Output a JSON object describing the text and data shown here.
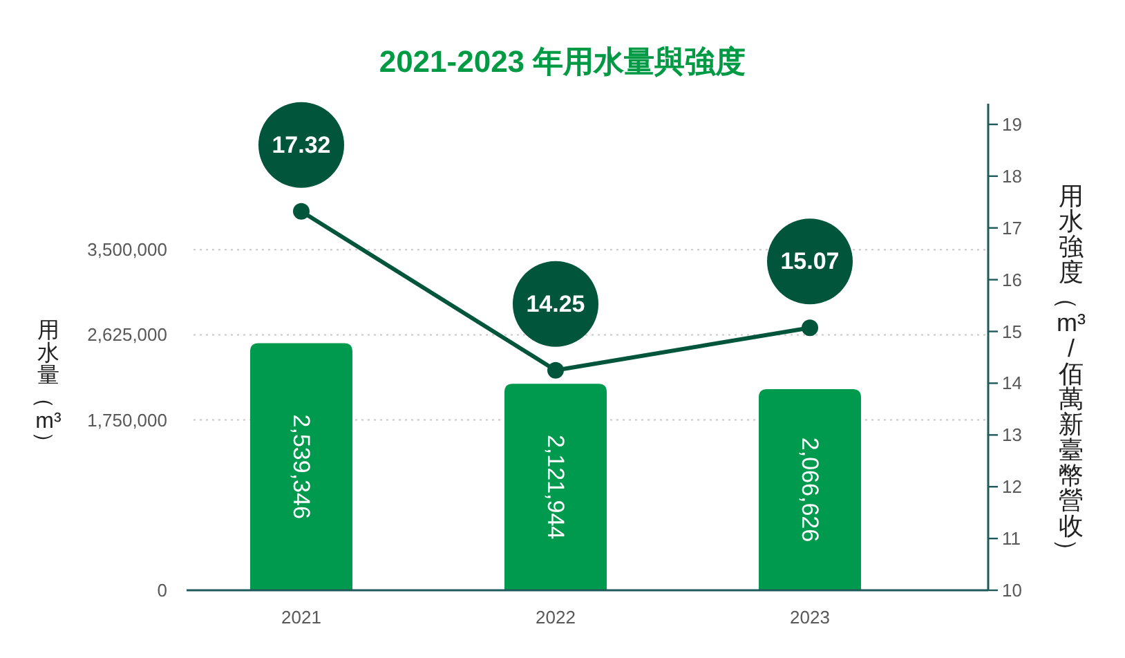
{
  "chart_data": {
    "type": "bar",
    "title": "2021-2023 年用水量與強度",
    "ylabel": "用水量（m³）",
    "y2label": "用水強度（m³/佰萬新臺幣營收）",
    "categories": [
      "2021",
      "2022",
      "2023"
    ],
    "series": [
      {
        "color": "#009a4e",
        "values": [
          2539346,
          2121944,
          2066626
        ],
        "value_labels": [
          "2,539,346",
          "2,121,944",
          "2,066,626"
        ]
      },
      {
        "type": "line",
        "axis": "y2",
        "color": "#00553b",
        "marker": "circle",
        "values": [
          17.32,
          14.25,
          15.07
        ],
        "value_labels": [
          "17.32",
          "14.25",
          "15.07"
        ]
      }
    ],
    "ylim": [
      0,
      5000000
    ],
    "yticks": [
      0,
      {
        "value": 1750000,
        "label": "1,750,000"
      },
      {
        "value": 2625000,
        "label": "2,625,000"
      },
      {
        "value": 3500000,
        "label": "3,500,000"
      }
    ],
    "y2lim": [
      10,
      19.4
    ],
    "y2ticks": [
      10,
      11,
      12,
      13,
      14,
      15,
      16,
      17,
      18,
      19
    ],
    "grid": "y"
  }
}
